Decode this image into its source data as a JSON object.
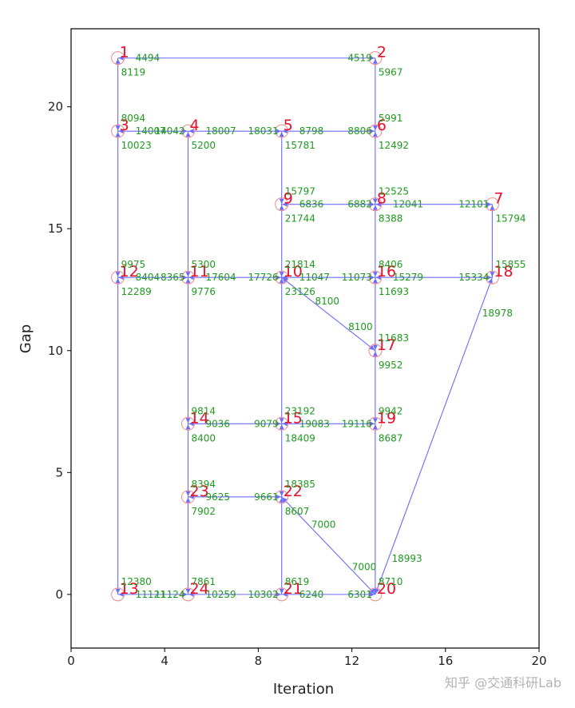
{
  "chart_data": {
    "type": "scatter",
    "title": "",
    "xlabel": "Iteration",
    "ylabel": "Gap",
    "xlim": [
      0,
      20
    ],
    "ylim": [
      -2.2,
      23.2
    ],
    "xticks": [
      "0",
      "4",
      "8",
      "12",
      "16",
      "20"
    ],
    "xtick_values": [
      0,
      4,
      8,
      12,
      16,
      20
    ],
    "yticks": [
      "0",
      "5",
      "10",
      "15",
      "20"
    ],
    "ytick_values": [
      0,
      5,
      10,
      15,
      20
    ],
    "grid": false,
    "line_color": "#6b6bff",
    "node_color": "#f08a8a",
    "label_color": "#e8102a",
    "flow_color": "#1f9a1f",
    "nodes": [
      {
        "id": "1",
        "x": 2,
        "y": 22
      },
      {
        "id": "2",
        "x": 13,
        "y": 22
      },
      {
        "id": "3",
        "x": 2,
        "y": 19
      },
      {
        "id": "4",
        "x": 5,
        "y": 19
      },
      {
        "id": "5",
        "x": 9,
        "y": 19
      },
      {
        "id": "6",
        "x": 13,
        "y": 19
      },
      {
        "id": "7",
        "x": 18,
        "y": 16
      },
      {
        "id": "8",
        "x": 13,
        "y": 16
      },
      {
        "id": "9",
        "x": 9,
        "y": 16
      },
      {
        "id": "10",
        "x": 9,
        "y": 13
      },
      {
        "id": "11",
        "x": 5,
        "y": 13
      },
      {
        "id": "12",
        "x": 2,
        "y": 13
      },
      {
        "id": "13",
        "x": 2,
        "y": 0
      },
      {
        "id": "14",
        "x": 5,
        "y": 7
      },
      {
        "id": "15",
        "x": 9,
        "y": 7
      },
      {
        "id": "16",
        "x": 13,
        "y": 13
      },
      {
        "id": "17",
        "x": 13,
        "y": 10
      },
      {
        "id": "18",
        "x": 18,
        "y": 13
      },
      {
        "id": "19",
        "x": 13,
        "y": 7
      },
      {
        "id": "20",
        "x": 13,
        "y": 0
      },
      {
        "id": "21",
        "x": 9,
        "y": 0
      },
      {
        "id": "22",
        "x": 9,
        "y": 4
      },
      {
        "id": "23",
        "x": 5,
        "y": 4
      },
      {
        "id": "24",
        "x": 5,
        "y": 0
      }
    ],
    "edges": [
      {
        "a": "1",
        "b": "2",
        "flow_ab": "4494",
        "flow_ba": "4519"
      },
      {
        "a": "1",
        "b": "3",
        "flow_ab": "8119",
        "flow_ba": "8094"
      },
      {
        "a": "2",
        "b": "6",
        "flow_ab": "5967",
        "flow_ba": "5991"
      },
      {
        "a": "3",
        "b": "4",
        "flow_ab": "14007",
        "flow_ba": "14042"
      },
      {
        "a": "3",
        "b": "12",
        "flow_ab": "10023",
        "flow_ba": "9975"
      },
      {
        "a": "4",
        "b": "5",
        "flow_ab": "18007",
        "flow_ba": "18031"
      },
      {
        "a": "4",
        "b": "11",
        "flow_ab": "5200",
        "flow_ba": "5300"
      },
      {
        "a": "5",
        "b": "6",
        "flow_ab": "8798",
        "flow_ba": "8806"
      },
      {
        "a": "5",
        "b": "9",
        "flow_ab": "15781",
        "flow_ba": "15797"
      },
      {
        "a": "6",
        "b": "8",
        "flow_ab": "12492",
        "flow_ba": "12525"
      },
      {
        "a": "7",
        "b": "8",
        "flow_ab": "12101",
        "flow_ba": "12041"
      },
      {
        "a": "7",
        "b": "18",
        "flow_ab": "15794",
        "flow_ba": "15855"
      },
      {
        "a": "8",
        "b": "9",
        "flow_ab": "6882",
        "flow_ba": "6836"
      },
      {
        "a": "8",
        "b": "16",
        "flow_ab": "8388",
        "flow_ba": "8406"
      },
      {
        "a": "9",
        "b": "10",
        "flow_ab": "21744",
        "flow_ba": "21814"
      },
      {
        "a": "10",
        "b": "11",
        "flow_ab": "17726",
        "flow_ba": "17604"
      },
      {
        "a": "10",
        "b": "16",
        "flow_ab": "11047",
        "flow_ba": "11073"
      },
      {
        "a": "10",
        "b": "17",
        "flow_ab": "8100",
        "flow_ba": "8100"
      },
      {
        "a": "10",
        "b": "15",
        "flow_ab": "23126",
        "flow_ba": "23192"
      },
      {
        "a": "11",
        "b": "12",
        "flow_ab": "8365",
        "flow_ba": "8404"
      },
      {
        "a": "11",
        "b": "14",
        "flow_ab": "9776",
        "flow_ba": "9814"
      },
      {
        "a": "12",
        "b": "13",
        "flow_ab": "12289",
        "flow_ba": "12380"
      },
      {
        "a": "13",
        "b": "24",
        "flow_ab": "11121",
        "flow_ba": "11124"
      },
      {
        "a": "14",
        "b": "15",
        "flow_ab": "9036",
        "flow_ba": "9079"
      },
      {
        "a": "14",
        "b": "23",
        "flow_ab": "8400",
        "flow_ba": "8394"
      },
      {
        "a": "15",
        "b": "19",
        "flow_ab": "19083",
        "flow_ba": "19116"
      },
      {
        "a": "15",
        "b": "22",
        "flow_ab": "18409",
        "flow_ba": "18385"
      },
      {
        "a": "16",
        "b": "17",
        "flow_ab": "11693",
        "flow_ba": "11683"
      },
      {
        "a": "16",
        "b": "18",
        "flow_ab": "15279",
        "flow_ba": "15334"
      },
      {
        "a": "17",
        "b": "19",
        "flow_ab": "9952",
        "flow_ba": "9942"
      },
      {
        "a": "18",
        "b": "20",
        "flow_ab": "18978",
        "flow_ba": "18993"
      },
      {
        "a": "19",
        "b": "20",
        "flow_ab": "8687",
        "flow_ba": "8710"
      },
      {
        "a": "20",
        "b": "21",
        "flow_ab": "6301",
        "flow_ba": "6240"
      },
      {
        "a": "20",
        "b": "22",
        "flow_ab": "7000",
        "flow_ba": "7000"
      },
      {
        "a": "21",
        "b": "22",
        "flow_ab": "8619",
        "flow_ba": "8607"
      },
      {
        "a": "21",
        "b": "24",
        "flow_ab": "10302",
        "flow_ba": "10259"
      },
      {
        "a": "22",
        "b": "23",
        "flow_ab": "9661",
        "flow_ba": "9625"
      },
      {
        "a": "23",
        "b": "24",
        "flow_ab": "7902",
        "flow_ba": "7861"
      }
    ]
  },
  "watermark": "知乎 @交通科研Lab"
}
